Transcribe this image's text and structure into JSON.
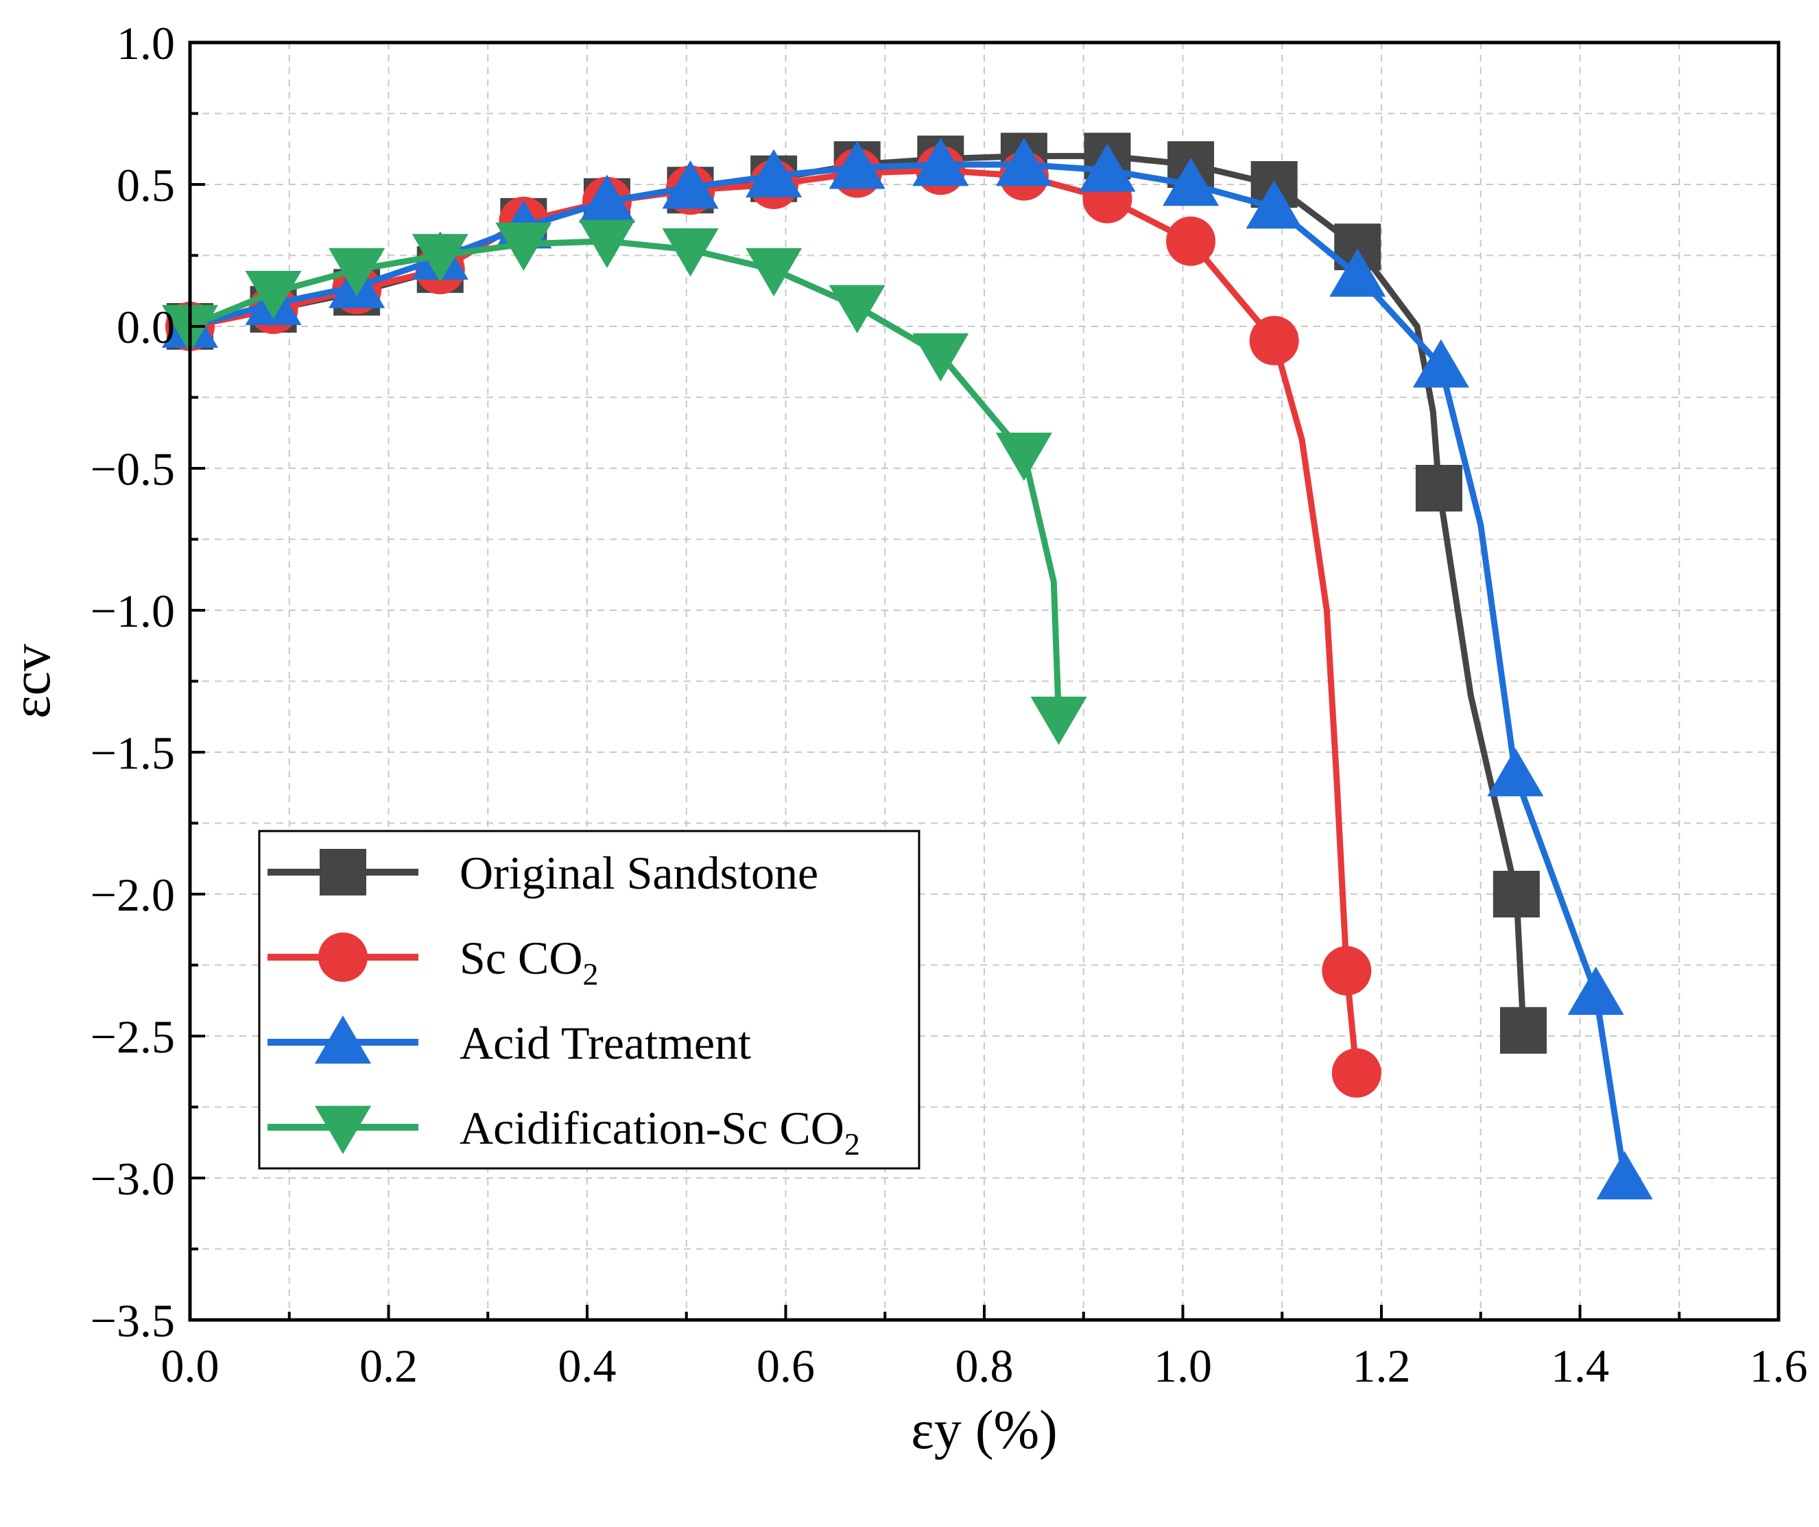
{
  "chart_data": {
    "type": "line",
    "title": "",
    "xlabel": "εy (%)",
    "ylabel": "εcv",
    "xlim": [
      0.0,
      1.6
    ],
    "ylim": [
      -3.5,
      1.0
    ],
    "grid": true,
    "legend_position": "bottom-left",
    "xticks": [
      "0.0",
      "0.2",
      "0.4",
      "0.6",
      "0.8",
      "1.0",
      "1.2",
      "1.4",
      "1.6"
    ],
    "yticks": [
      "1.0",
      "0.5",
      "0.0",
      "−0.5",
      "−1.0",
      "−1.5",
      "−2.0",
      "−2.5",
      "−3.0",
      "−3.5"
    ],
    "series": [
      {
        "name": "Original Sandstone",
        "legend_main": "Original Sandstone",
        "legend_sub": "",
        "legend_tail": "",
        "color": "#454545",
        "marker": "square",
        "x": [
          0.0,
          0.084,
          0.168,
          0.252,
          0.336,
          0.42,
          0.504,
          0.588,
          0.672,
          0.756,
          0.84,
          0.924,
          1.008,
          1.092,
          1.176,
          1.236,
          1.252,
          1.258,
          1.29,
          1.336,
          1.343
        ],
        "y": [
          0.0,
          0.06,
          0.12,
          0.2,
          0.37,
          0.44,
          0.48,
          0.52,
          0.57,
          0.59,
          0.6,
          0.6,
          0.57,
          0.5,
          0.28,
          0.0,
          -0.3,
          -0.57,
          -1.3,
          -2.0,
          -2.48
        ],
        "markers_x": [
          0.0,
          0.084,
          0.168,
          0.252,
          0.336,
          0.42,
          0.504,
          0.588,
          0.672,
          0.756,
          0.84,
          0.924,
          1.008,
          1.092,
          1.176,
          1.258,
          1.336,
          1.343
        ],
        "markers_y": [
          0.0,
          0.06,
          0.12,
          0.2,
          0.37,
          0.44,
          0.48,
          0.52,
          0.57,
          0.59,
          0.6,
          0.6,
          0.57,
          0.5,
          0.28,
          -0.57,
          -2.0,
          -2.48
        ]
      },
      {
        "name": "Sc CO2",
        "legend_main": "Sc CO",
        "legend_sub": "2",
        "legend_tail": "",
        "color": "#e8393a",
        "marker": "circle",
        "x": [
          0.0,
          0.084,
          0.168,
          0.252,
          0.336,
          0.42,
          0.504,
          0.588,
          0.672,
          0.756,
          0.84,
          0.924,
          1.008,
          1.092,
          1.12,
          1.145,
          1.155,
          1.165,
          1.175
        ],
        "y": [
          0.0,
          0.06,
          0.13,
          0.2,
          0.37,
          0.44,
          0.48,
          0.5,
          0.54,
          0.55,
          0.53,
          0.45,
          0.3,
          -0.05,
          -0.4,
          -1.0,
          -1.6,
          -2.27,
          -2.63
        ],
        "markers_x": [
          0.0,
          0.084,
          0.168,
          0.252,
          0.336,
          0.42,
          0.504,
          0.588,
          0.672,
          0.756,
          0.84,
          0.924,
          1.008,
          1.092,
          1.165,
          1.175
        ],
        "markers_y": [
          0.0,
          0.06,
          0.13,
          0.2,
          0.37,
          0.44,
          0.48,
          0.5,
          0.54,
          0.55,
          0.53,
          0.45,
          0.3,
          -0.05,
          -2.27,
          -2.63
        ]
      },
      {
        "name": "Acid Treatment",
        "legend_main": "Acid Treatment",
        "legend_sub": "",
        "legend_tail": "",
        "color": "#1e6fd9",
        "marker": "triangle-up",
        "x": [
          0.0,
          0.084,
          0.168,
          0.252,
          0.336,
          0.42,
          0.504,
          0.588,
          0.672,
          0.756,
          0.84,
          0.924,
          1.008,
          1.092,
          1.176,
          1.26,
          1.3,
          1.335,
          1.416,
          1.445
        ],
        "y": [
          0.0,
          0.08,
          0.14,
          0.24,
          0.35,
          0.44,
          0.49,
          0.53,
          0.56,
          0.57,
          0.57,
          0.55,
          0.5,
          0.42,
          0.18,
          -0.14,
          -0.7,
          -1.58,
          -2.35,
          -3.0
        ],
        "markers_x": [
          0.0,
          0.084,
          0.168,
          0.252,
          0.336,
          0.42,
          0.504,
          0.588,
          0.672,
          0.756,
          0.84,
          0.924,
          1.008,
          1.092,
          1.176,
          1.26,
          1.335,
          1.416,
          1.445
        ],
        "markers_y": [
          0.0,
          0.08,
          0.14,
          0.24,
          0.35,
          0.44,
          0.49,
          0.53,
          0.56,
          0.57,
          0.57,
          0.55,
          0.5,
          0.42,
          0.18,
          -0.14,
          -1.58,
          -2.35,
          -3.0
        ]
      },
      {
        "name": "Acidification-Sc CO2",
        "legend_main": "Acidification-Sc CO",
        "legend_sub": "2",
        "legend_tail": "",
        "color": "#2fa862",
        "marker": "triangle-down",
        "x": [
          0.0,
          0.084,
          0.168,
          0.252,
          0.336,
          0.42,
          0.504,
          0.588,
          0.672,
          0.756,
          0.84,
          0.87,
          0.875
        ],
        "y": [
          0.0,
          0.12,
          0.2,
          0.25,
          0.29,
          0.3,
          0.27,
          0.2,
          0.07,
          -0.1,
          -0.45,
          -0.9,
          -1.38
        ],
        "markers_x": [
          0.0,
          0.084,
          0.168,
          0.252,
          0.336,
          0.42,
          0.504,
          0.588,
          0.672,
          0.756,
          0.84,
          0.875
        ],
        "markers_y": [
          0.0,
          0.12,
          0.2,
          0.25,
          0.29,
          0.3,
          0.27,
          0.2,
          0.07,
          -0.1,
          -0.45,
          -1.38
        ]
      }
    ]
  }
}
